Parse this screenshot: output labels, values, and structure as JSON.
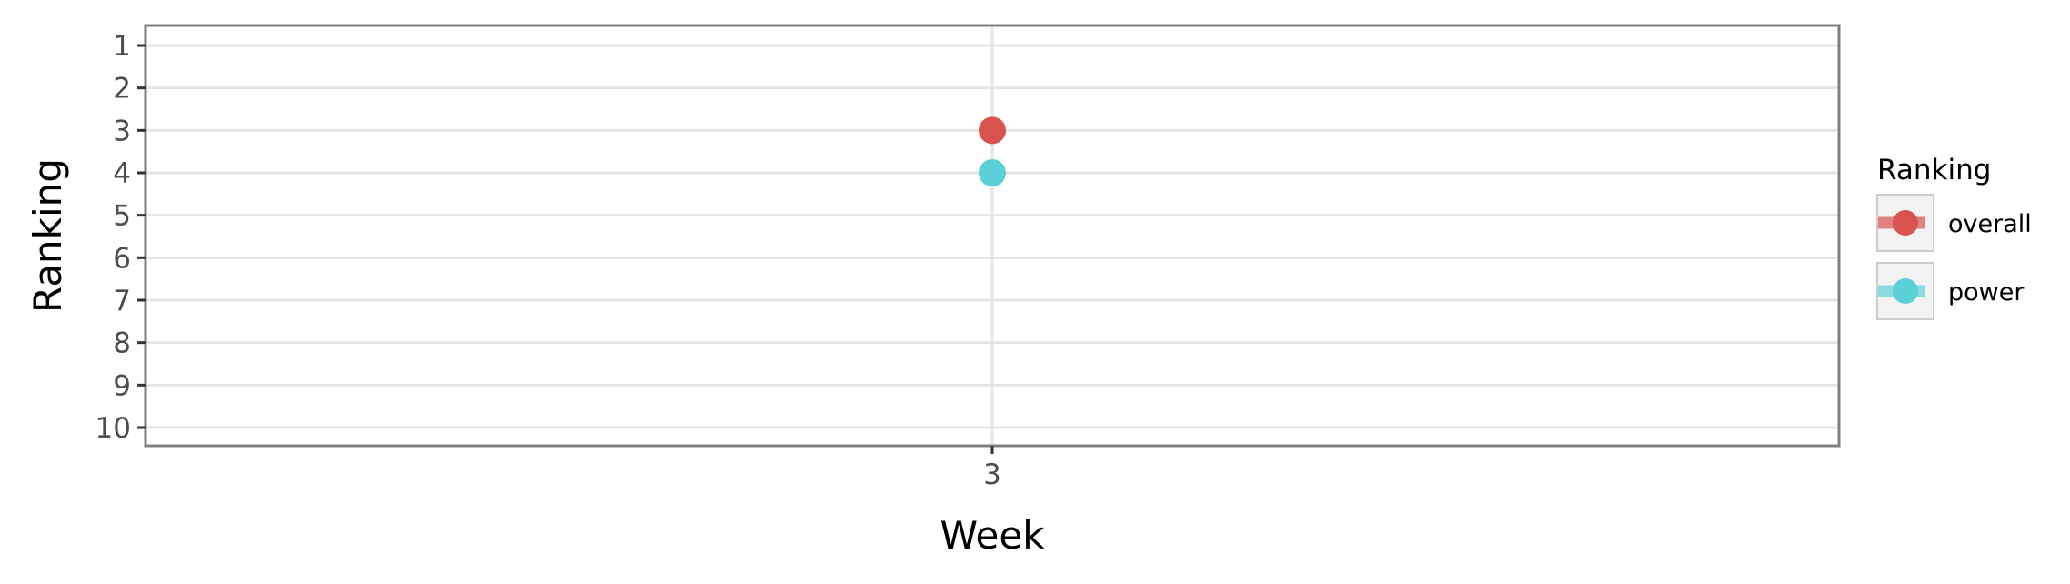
{
  "chart_data": {
    "type": "scatter",
    "xlabel": "Week",
    "ylabel": "Ranking",
    "x_categories": [
      "3"
    ],
    "y_ticks": [
      1,
      2,
      3,
      4,
      5,
      6,
      7,
      8,
      9,
      10
    ],
    "ylim": [
      10,
      1
    ],
    "y_reversed": true,
    "grid": true,
    "legend": {
      "title": "Ranking",
      "position": "right",
      "entries": [
        "overall",
        "power"
      ]
    },
    "series": [
      {
        "name": "overall",
        "color": "#d9534f",
        "points": [
          {
            "x": "3",
            "y": 3
          }
        ]
      },
      {
        "name": "power",
        "color": "#5bd1d7",
        "points": [
          {
            "x": "3",
            "y": 4
          }
        ]
      }
    ]
  }
}
